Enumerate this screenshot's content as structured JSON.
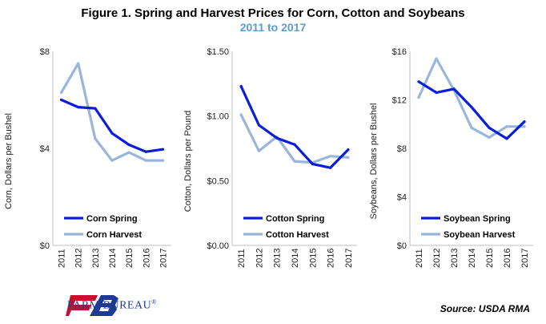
{
  "header": {
    "title": "Figure 1. Spring and Harvest Prices for Corn, Cotton and Soybeans",
    "subtitle": "2011 to 2017"
  },
  "footer": {
    "brand": "FARM BUREAU",
    "brand_mark": "®",
    "source": "Source: USDA RMA"
  },
  "colors": {
    "spring": "#0a1ddb",
    "harvest": "#9ab5dc",
    "subtitle": "#5b9bd5",
    "brand": "#1f3a93",
    "logo_red": "#c8102e"
  },
  "chart_data": [
    {
      "type": "line",
      "ylabel": "Corn, Dollars per Bushel",
      "x": [
        "2011",
        "2012",
        "2013",
        "2014",
        "2015",
        "2016",
        "2017"
      ],
      "ylim": [
        0,
        8
      ],
      "yticks": [
        "$0",
        "$4",
        "$8"
      ],
      "grid": false,
      "legend": "bottom-left",
      "series": [
        {
          "name": "Corn Spring",
          "values": [
            6.0,
            5.7,
            5.65,
            4.62,
            4.15,
            3.86,
            3.96
          ]
        },
        {
          "name": "Corn Harvest",
          "values": [
            6.3,
            7.5,
            4.4,
            3.5,
            3.83,
            3.5,
            3.5
          ]
        }
      ]
    },
    {
      "type": "line",
      "ylabel": "Cotton, Dollars per Pound",
      "x": [
        "2011",
        "2012",
        "2013",
        "2014",
        "2015",
        "2016",
        "2017"
      ],
      "ylim": [
        0,
        1.5
      ],
      "yticks": [
        "$0.00",
        "$0.50",
        "$1.00",
        "$1.50"
      ],
      "grid": false,
      "legend": "bottom-left",
      "series": [
        {
          "name": "Cotton Spring",
          "values": [
            1.23,
            0.93,
            0.83,
            0.78,
            0.63,
            0.6,
            0.74
          ]
        },
        {
          "name": "Cotton Harvest",
          "values": [
            1.01,
            0.73,
            0.84,
            0.65,
            0.64,
            0.69,
            0.68
          ]
        }
      ]
    },
    {
      "type": "line",
      "ylabel": "Soybeans, Dollars per Bushel",
      "x": [
        "2011",
        "2012",
        "2013",
        "2014",
        "2015",
        "2016",
        "2017"
      ],
      "ylim": [
        0,
        16
      ],
      "yticks": [
        "$0",
        "$4",
        "$8",
        "$12",
        "$16"
      ],
      "grid": false,
      "legend": "bottom-left",
      "series": [
        {
          "name": "Soybean Spring",
          "values": [
            13.5,
            12.6,
            12.9,
            11.4,
            9.7,
            8.8,
            10.2
          ]
        },
        {
          "name": "Soybean Harvest",
          "values": [
            12.2,
            15.4,
            12.8,
            9.7,
            8.9,
            9.8,
            9.8
          ]
        }
      ]
    }
  ]
}
